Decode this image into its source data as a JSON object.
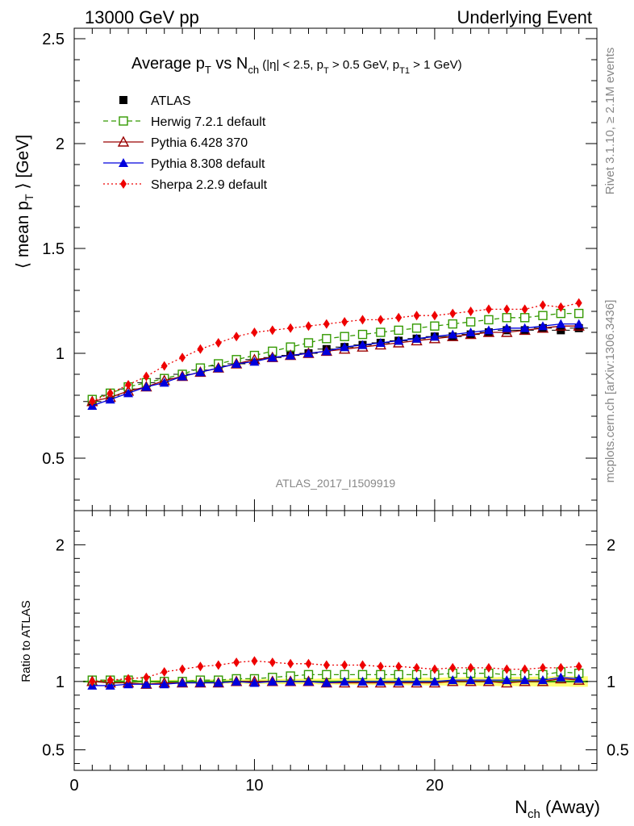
{
  "header": {
    "energy_label": "13000 GeV pp",
    "process_label": "Underlying Event"
  },
  "side_text": {
    "rivet": "Rivet 3.1.10, ≥ 2.1M events",
    "mcplots": "mcplots.cern.ch [arXiv:1306.3436]"
  },
  "watermark": "ATLAS_2017_I1509919",
  "colors": {
    "atlas": "#000000",
    "herwig": "#339900",
    "pythia6": "#990000",
    "pythia8": "#0000dd",
    "sherpa": "#ee0000",
    "band": "#ffff66",
    "ratio_line": "#339900"
  },
  "chart_data": [
    {
      "type": "line",
      "panel": "main",
      "title_parts": {
        "t1": "Average p",
        "t1_sub": "T",
        "t2": " vs N",
        "t2_sub": "ch",
        "t3": " (|η| < 2.5, p",
        "t3_sub": "T",
        "t4": " > 0.5 GeV, p",
        "t4_sub": "T1",
        "t5": " > 1 GeV)"
      },
      "ylabel_parts": {
        "a": "⟨ mean p",
        "sub": "T",
        "b": " ⟩ [GeV]"
      },
      "xlim": [
        0,
        29
      ],
      "ylim": [
        0.25,
        2.55
      ],
      "yticks": [
        0.5,
        1,
        1.5,
        2,
        2.5
      ],
      "ytick_labels": [
        "0.5",
        "1",
        "1.5",
        "2",
        "2.5"
      ],
      "grid": false,
      "legend_position": "top-left",
      "x": [
        1,
        2,
        3,
        4,
        5,
        6,
        7,
        8,
        9,
        10,
        11,
        12,
        13,
        14,
        15,
        16,
        17,
        18,
        19,
        20,
        21,
        22,
        23,
        24,
        25,
        26,
        27,
        28
      ],
      "series": [
        {
          "name": "ATLAS",
          "style": "data",
          "marker": "square-filled",
          "values": [
            0.77,
            0.8,
            0.83,
            0.86,
            0.88,
            0.9,
            0.92,
            0.94,
            0.95,
            0.97,
            0.98,
            0.99,
            1.0,
            1.02,
            1.03,
            1.04,
            1.05,
            1.06,
            1.07,
            1.08,
            1.08,
            1.09,
            1.1,
            1.11,
            1.11,
            1.12,
            1.11,
            1.12
          ]
        },
        {
          "name": "Herwig 7.2.1 default",
          "style": "dashed",
          "marker": "square-open",
          "values": [
            0.78,
            0.81,
            0.84,
            0.86,
            0.88,
            0.9,
            0.93,
            0.95,
            0.97,
            0.99,
            1.01,
            1.03,
            1.05,
            1.07,
            1.08,
            1.09,
            1.1,
            1.11,
            1.12,
            1.13,
            1.14,
            1.15,
            1.16,
            1.17,
            1.17,
            1.18,
            1.19,
            1.19
          ]
        },
        {
          "name": "Pythia 6.428 370",
          "style": "solid",
          "marker": "triangle-open",
          "values": [
            0.77,
            0.79,
            0.82,
            0.84,
            0.87,
            0.89,
            0.91,
            0.93,
            0.95,
            0.97,
            0.98,
            0.99,
            1.0,
            1.01,
            1.02,
            1.03,
            1.04,
            1.05,
            1.06,
            1.07,
            1.08,
            1.09,
            1.1,
            1.1,
            1.11,
            1.12,
            1.13,
            1.13
          ]
        },
        {
          "name": "Pythia 8.308 default",
          "style": "solid",
          "marker": "triangle-filled",
          "values": [
            0.75,
            0.78,
            0.81,
            0.84,
            0.86,
            0.89,
            0.91,
            0.93,
            0.95,
            0.96,
            0.98,
            0.99,
            1.0,
            1.01,
            1.03,
            1.04,
            1.05,
            1.06,
            1.07,
            1.08,
            1.09,
            1.1,
            1.11,
            1.12,
            1.12,
            1.13,
            1.14,
            1.14
          ]
        },
        {
          "name": "Sherpa 2.2.9 default",
          "style": "dotted",
          "marker": "diamond-filled",
          "values": [
            0.77,
            0.81,
            0.85,
            0.89,
            0.94,
            0.98,
            1.02,
            1.05,
            1.08,
            1.1,
            1.11,
            1.12,
            1.13,
            1.14,
            1.15,
            1.16,
            1.16,
            1.17,
            1.18,
            1.18,
            1.19,
            1.2,
            1.21,
            1.21,
            1.21,
            1.23,
            1.22,
            1.24
          ]
        }
      ]
    },
    {
      "type": "line",
      "panel": "ratio",
      "ylabel": "Ratio to ATLAS",
      "xlabel_parts": {
        "a": "N",
        "sub": "ch",
        "b": " (Away)"
      },
      "xlim": [
        0,
        29
      ],
      "ylim": [
        0.35,
        2.25
      ],
      "xticks": [
        0,
        10,
        20
      ],
      "xtick_labels": [
        "0",
        "10",
        "20"
      ],
      "yticks": [
        0.5,
        1,
        2
      ],
      "ytick_labels": [
        "0.5",
        "1",
        "2"
      ],
      "reference": 1.0,
      "x": [
        1,
        2,
        3,
        4,
        5,
        6,
        7,
        8,
        9,
        10,
        11,
        12,
        13,
        14,
        15,
        16,
        17,
        18,
        19,
        20,
        21,
        22,
        23,
        24,
        25,
        26,
        27,
        28
      ],
      "series": [
        {
          "name": "Herwig 7.2.1 default",
          "style": "dashed",
          "marker": "square-open",
          "values": [
            1.01,
            1.01,
            1.01,
            1.0,
            1.0,
            1.0,
            1.01,
            1.01,
            1.02,
            1.02,
            1.03,
            1.04,
            1.05,
            1.05,
            1.05,
            1.05,
            1.05,
            1.05,
            1.05,
            1.05,
            1.06,
            1.06,
            1.06,
            1.05,
            1.05,
            1.05,
            1.07,
            1.06
          ]
        },
        {
          "name": "Pythia 6.428 370",
          "style": "solid",
          "marker": "triangle-open",
          "values": [
            1.0,
            0.99,
            0.99,
            0.98,
            0.99,
            0.99,
            0.99,
            0.99,
            1.0,
            1.0,
            1.0,
            1.0,
            1.0,
            0.99,
            0.99,
            0.99,
            0.99,
            0.99,
            0.99,
            0.99,
            1.0,
            1.0,
            1.0,
            0.99,
            1.0,
            1.0,
            1.02,
            1.01
          ]
        },
        {
          "name": "Pythia 8.308 default",
          "style": "solid",
          "marker": "triangle-filled",
          "values": [
            0.97,
            0.97,
            0.98,
            0.98,
            0.98,
            0.99,
            0.99,
            0.99,
            1.0,
            0.99,
            1.0,
            1.0,
            1.0,
            0.99,
            1.0,
            1.0,
            1.0,
            1.0,
            1.0,
            1.0,
            1.01,
            1.01,
            1.01,
            1.01,
            1.01,
            1.01,
            1.03,
            1.02
          ]
        },
        {
          "name": "Sherpa 2.2.9 default",
          "style": "dotted",
          "marker": "diamond-filled",
          "values": [
            1.0,
            1.01,
            1.02,
            1.03,
            1.07,
            1.09,
            1.11,
            1.12,
            1.14,
            1.15,
            1.14,
            1.13,
            1.13,
            1.12,
            1.12,
            1.12,
            1.11,
            1.11,
            1.1,
            1.09,
            1.1,
            1.1,
            1.1,
            1.09,
            1.09,
            1.1,
            1.1,
            1.11
          ]
        }
      ]
    }
  ]
}
